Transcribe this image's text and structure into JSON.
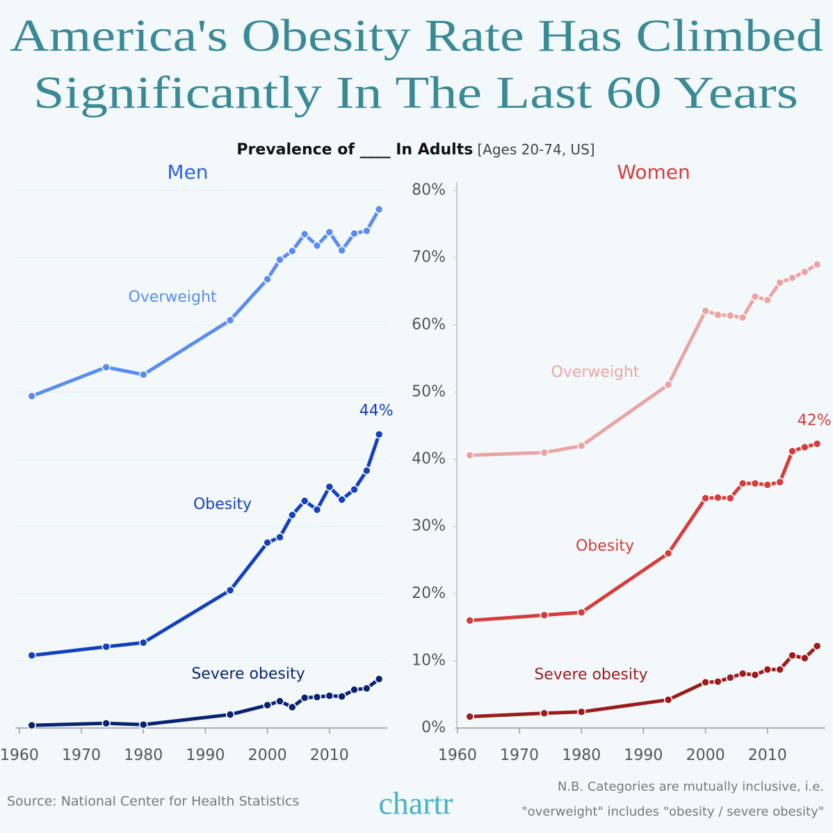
{
  "title_lines": [
    "America's Obesity Rate Has Climbed",
    "Significantly In The Last 60 Years"
  ],
  "subtitle": "Prevalence of ____ In Adults",
  "subtitle_note": "[Ages 20-74, US]",
  "source": "Source: National Center for Health Statistics",
  "logo": "chartr",
  "note_lines": [
    "N.B. Categories are mutually inclusive, i.e.",
    "\"overweight\" includes \"obesity / severe obesity\""
  ],
  "chart_data": [
    {
      "type": "line",
      "title": "Men",
      "title_color": "#2f5fe0",
      "x": [
        1962,
        1974,
        1980,
        1994,
        2000,
        2002,
        2004,
        2006,
        2008,
        2010,
        2012,
        2014,
        2016,
        2018
      ],
      "xlim": [
        1958,
        2020
      ],
      "xticks": [
        1960,
        1970,
        1980,
        1990,
        2000,
        2010
      ],
      "ylim": [
        0,
        80
      ],
      "yticks": [
        0,
        10,
        20,
        30,
        40,
        50,
        60,
        70,
        80
      ],
      "show_ytick_labels": false,
      "grid": true,
      "series": [
        {
          "name": "Overweight",
          "color": "#5b8cf0",
          "values": [
            49.4,
            53.7,
            52.6,
            60.7,
            66.8,
            69.7,
            71.0,
            73.5,
            71.8,
            73.8,
            71.1,
            73.6,
            74.0,
            77.2
          ]
        },
        {
          "name": "Obesity",
          "color": "#1440c0",
          "values": [
            10.8,
            12.1,
            12.7,
            20.5,
            27.6,
            28.4,
            31.7,
            33.8,
            32.5,
            35.9,
            34.0,
            35.5,
            38.3,
            43.7
          ],
          "value_labels": [
            null,
            null,
            null,
            null,
            null,
            null,
            null,
            null,
            null,
            null,
            null,
            null,
            null,
            "44%"
          ]
        },
        {
          "name": "Severe obesity",
          "color": "#0a2370",
          "values": [
            0.4,
            0.7,
            0.5,
            2.0,
            3.4,
            4.0,
            3.1,
            4.5,
            4.6,
            4.8,
            4.7,
            5.7,
            5.9,
            7.3
          ]
        }
      ]
    },
    {
      "type": "line",
      "title": "Women",
      "title_color": "#d63c3c",
      "x": [
        1962,
        1974,
        1980,
        1994,
        2000,
        2002,
        2004,
        2006,
        2008,
        2010,
        2012,
        2014,
        2016,
        2018
      ],
      "xlim": [
        1958,
        2020
      ],
      "xticks": [
        1960,
        1970,
        1980,
        1990,
        2000,
        2010
      ],
      "ylim": [
        0,
        80
      ],
      "yticks": [
        {
          "value": 0,
          "label": "0%"
        },
        {
          "value": 10,
          "label": "10%"
        },
        {
          "value": 20,
          "label": "20%"
        },
        {
          "value": 30,
          "label": "30%"
        },
        {
          "value": 40,
          "label": "40%"
        },
        {
          "value": 50,
          "label": "50%"
        },
        {
          "value": 60,
          "label": "60%"
        },
        {
          "value": 70,
          "label": "70%"
        },
        {
          "value": 80,
          "label": "80%"
        }
      ],
      "show_ytick_labels": true,
      "grid": false,
      "series": [
        {
          "name": "Overweight",
          "color": "#eba4a4",
          "values": [
            40.6,
            41.0,
            42.0,
            51.1,
            62.1,
            61.5,
            61.4,
            61.1,
            64.2,
            63.7,
            66.3,
            67.0,
            67.9,
            69.0
          ]
        },
        {
          "name": "Obesity",
          "color": "#d63c3c",
          "values": [
            16.0,
            16.8,
            17.2,
            26.0,
            34.2,
            34.3,
            34.2,
            36.4,
            36.4,
            36.2,
            36.6,
            41.2,
            41.8,
            42.3
          ],
          "value_labels": [
            null,
            null,
            null,
            null,
            null,
            null,
            null,
            null,
            null,
            null,
            null,
            null,
            null,
            "42%"
          ]
        },
        {
          "name": "Severe obesity",
          "color": "#9b1c1c",
          "values": [
            1.7,
            2.2,
            2.4,
            4.2,
            6.8,
            6.9,
            7.5,
            8.1,
            7.9,
            8.7,
            8.7,
            10.8,
            10.4,
            12.2
          ]
        }
      ]
    }
  ]
}
